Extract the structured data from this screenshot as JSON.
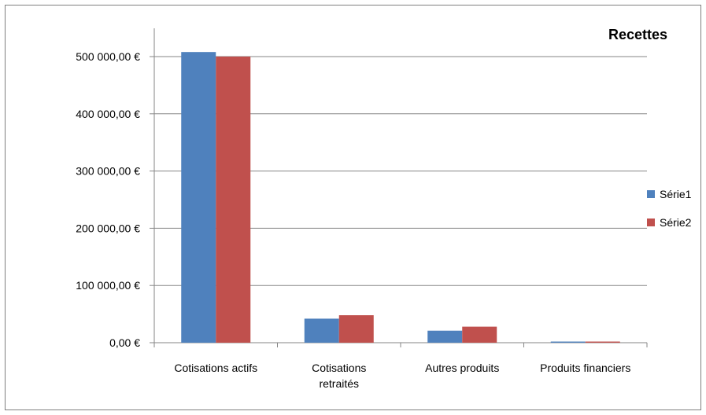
{
  "chart_data": {
    "type": "bar",
    "title": "Recettes",
    "categories": [
      "Cotisations actifs",
      "Cotisations retraités",
      "Autres produits",
      "Produits financiers"
    ],
    "category_lines": [
      [
        "Cotisations actifs"
      ],
      [
        "Cotisations",
        "retraités"
      ],
      [
        "Autres produits"
      ],
      [
        "Produits financiers"
      ]
    ],
    "series": [
      {
        "name": "Série1",
        "color": "#4f81bd",
        "values": [
          508000,
          42000,
          21000,
          2000
        ]
      },
      {
        "name": "Série2",
        "color": "#c0504d",
        "values": [
          500000,
          48000,
          28000,
          2000
        ]
      }
    ],
    "ylim": [
      0,
      500000
    ],
    "yticks": [
      0,
      100000,
      200000,
      300000,
      400000,
      500000
    ],
    "ytick_labels": [
      "0,00 €",
      "100 000,00 €",
      "200 000,00 €",
      "300 000,00 €",
      "400 000,00 €",
      "500 000,00 €"
    ],
    "grid": true,
    "legend_position": "right"
  }
}
